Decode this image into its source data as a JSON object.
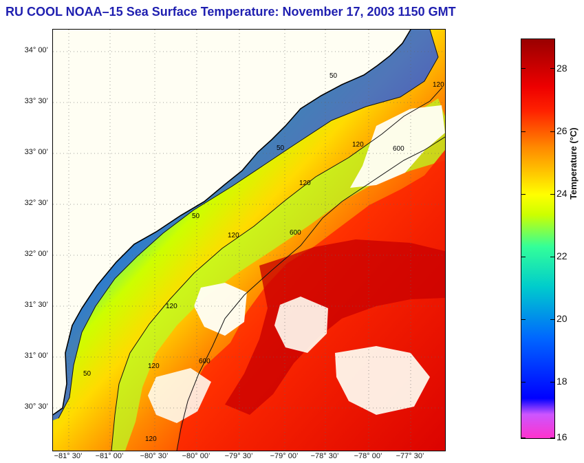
{
  "title": "RU COOL  NOAA–15  Sea Surface Temperature:  November 17, 2003 1150 GMT",
  "latitude_labels": [
    "34° 00’",
    "33° 30’",
    "33° 00’",
    "32° 30’",
    "32° 00’",
    "31° 30’",
    "31° 00’",
    "30° 30’"
  ],
  "longitude_labels": [
    "−81° 30’",
    "−81° 00’",
    "−80° 30’",
    "−80° 00’",
    "−79° 30’",
    "−79° 00’",
    "−78° 30’",
    "−78° 00’",
    "−77° 30’"
  ],
  "contour_labels": [
    "50",
    "50",
    "50",
    "50",
    "120",
    "120",
    "120",
    "120",
    "120",
    "120",
    "120",
    "600",
    "600",
    "600"
  ],
  "colorbar": {
    "title": "Temperature (°C)",
    "ticks": [
      "28",
      "26",
      "24",
      "22",
      "20",
      "18",
      "16"
    ],
    "min": 16,
    "max": 29
  },
  "colors": {
    "title": "#1f1fb0",
    "land": "#fffef3",
    "coast": "#000000"
  }
}
